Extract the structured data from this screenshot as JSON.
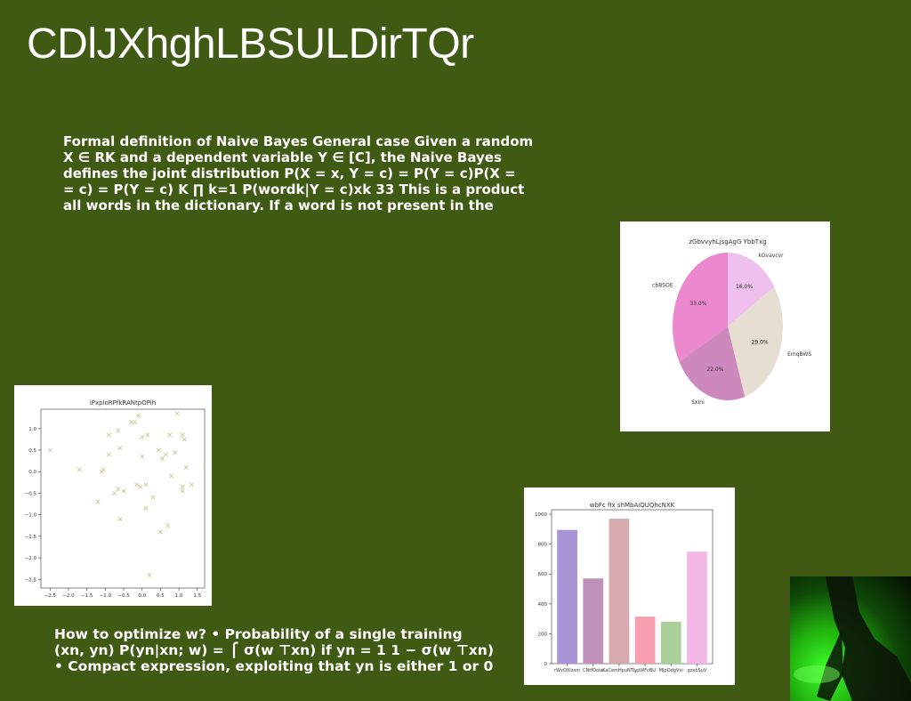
{
  "slide": {
    "title": "CDlJXhghLBSULDirTQr",
    "paragraph1": [
      "Formal definition of Naive Bayes General case Given a random",
      "X ∈ RK and a dependent variable Y ∈ [C], the Naive Bayes",
      "defines the joint distribution P(X = x, Y = c) = P(Y = c)P(X =",
      "= c) = P(Y = c) K ∏ k=1 P(wordk|Y = c)xk 33 This is a product",
      "all words in the dictionary. If a word is not present in the"
    ],
    "paragraph2": [
      "How to optimize w? • Probability of a single training",
      "(xn, yn) P(yn|xn; w) = ⎧ σ(w ⊤xn) if yn = 1 1 − σ(w ⊤xn)",
      "• Compact expression, exploiting that yn is either 1 or 0"
    ]
  },
  "chart_data": [
    {
      "type": "pie",
      "title": "zGbvvyhLjsgAgG YbbTxg",
      "slices": [
        {
          "label": "kOvavcvr",
          "value": 16.0,
          "pct_label": "16.0%",
          "color": "#efc0ee"
        },
        {
          "label": "EmqBWS",
          "value": 29.0,
          "pct_label": "29.0%",
          "color": "#e6ded0"
        },
        {
          "label": "SxIni",
          "value": 22.0,
          "pct_label": "22.0%",
          "color": "#cd88bc"
        },
        {
          "label": "cbBSOE",
          "value": 33.0,
          "pct_label": "33.0%",
          "color": "#ec88cd"
        }
      ],
      "start_angle_deg": 90,
      "direction": "clockwise"
    },
    {
      "type": "scatter",
      "title": "iPxploRPfkRANtpOPih",
      "marker": "x",
      "color": "#cfc49a",
      "xlim": [
        -2.75,
        1.7
      ],
      "ylim": [
        -2.7,
        1.45
      ],
      "xticks": [
        -2.5,
        -2.0,
        -1.5,
        -1.0,
        -0.5,
        0.0,
        0.5,
        1.0,
        1.5
      ],
      "xtick_labels": [
        "−2.5",
        "−2.0",
        "−1.5",
        "−1.0",
        "−0.5",
        "0.0",
        "0.5",
        "1.0",
        "1.5"
      ],
      "yticks": [
        1.0,
        0.5,
        0.0,
        -0.5,
        -1.0,
        -1.5,
        -2.0,
        -2.5
      ],
      "ytick_labels": [
        "1.0",
        "0.5",
        "0.0",
        "−0.5",
        "−1.0",
        "−1.5",
        "−2.0",
        "−2.5"
      ],
      "points": [
        [
          -2.5,
          0.5
        ],
        [
          -1.7,
          0.05
        ],
        [
          -1.2,
          -0.7
        ],
        [
          -1.1,
          0.0
        ],
        [
          -1.05,
          0.05
        ],
        [
          -0.9,
          0.4
        ],
        [
          -0.9,
          0.85
        ],
        [
          -0.75,
          -0.5
        ],
        [
          -0.65,
          -0.4
        ],
        [
          -0.65,
          0.95
        ],
        [
          -0.6,
          -1.1
        ],
        [
          -0.6,
          0.55
        ],
        [
          -0.5,
          -0.45
        ],
        [
          -0.3,
          1.15
        ],
        [
          -0.2,
          1.15
        ],
        [
          -0.15,
          -0.3
        ],
        [
          -0.1,
          1.3
        ],
        [
          -0.05,
          -0.35
        ],
        [
          0.0,
          0.8
        ],
        [
          0.0,
          0.35
        ],
        [
          0.1,
          -0.3
        ],
        [
          0.1,
          -0.85
        ],
        [
          0.15,
          0.85
        ],
        [
          0.2,
          -2.4
        ],
        [
          0.3,
          -0.6
        ],
        [
          0.45,
          0.5
        ],
        [
          0.5,
          -1.4
        ],
        [
          0.55,
          0.3
        ],
        [
          0.65,
          0.4
        ],
        [
          0.7,
          -1.25
        ],
        [
          0.75,
          0.85
        ],
        [
          0.8,
          -0.1
        ],
        [
          0.9,
          0.45
        ],
        [
          0.95,
          1.35
        ],
        [
          1.1,
          0.85
        ],
        [
          1.1,
          -0.35
        ],
        [
          1.1,
          -0.45
        ],
        [
          1.15,
          0.75
        ],
        [
          1.2,
          0.1
        ],
        [
          1.35,
          -0.3
        ]
      ]
    },
    {
      "type": "bar",
      "title": "wbFc fIx shMbAiQUQhcNXK",
      "categories": [
        "rWvQXlzxm",
        "CNtfOoiw",
        "KaCemHpuNTL",
        "ypWFcBU",
        "MJpOdgVvi",
        "gzxbSuV"
      ],
      "values": [
        895,
        570,
        970,
        315,
        280,
        750
      ],
      "colors": [
        "#a894d4",
        "#c092b9",
        "#d6aaae",
        "#f79fb0",
        "#aad09a",
        "#f4b8e8"
      ],
      "ylim": [
        0,
        1030
      ],
      "yticks": [
        0,
        200,
        400,
        600,
        800,
        1000
      ]
    }
  ]
}
